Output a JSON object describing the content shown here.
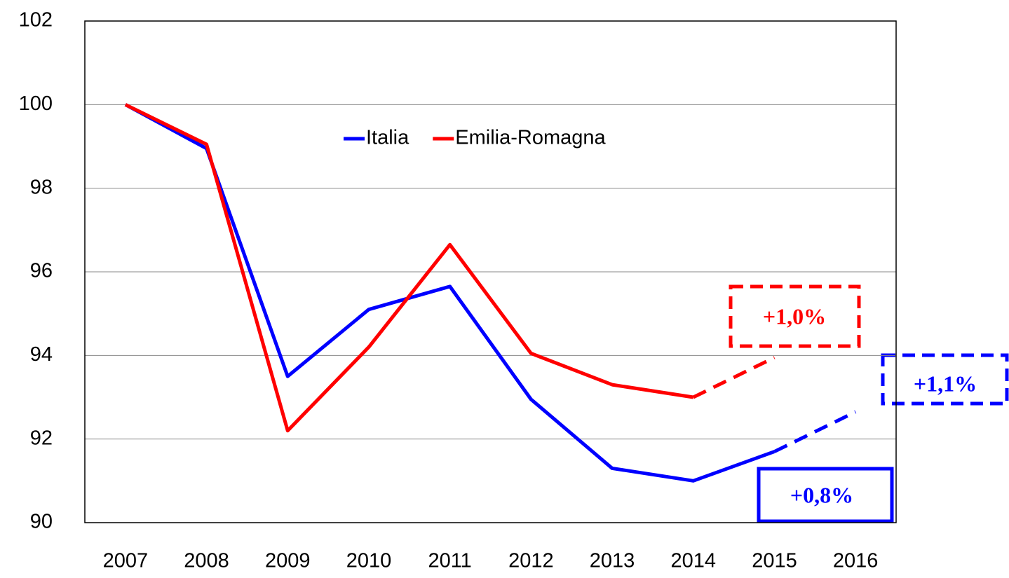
{
  "chart_data": {
    "type": "line",
    "categories": [
      "2007",
      "2008",
      "2009",
      "2010",
      "2011",
      "2012",
      "2013",
      "2014",
      "2015",
      "2016"
    ],
    "series": [
      {
        "name": "Italia",
        "color": "#0000ff",
        "dashed_from": 8,
        "values": [
          100,
          98.95,
          93.5,
          95.1,
          95.65,
          92.95,
          91.3,
          91.0,
          91.7,
          92.65
        ]
      },
      {
        "name": "Emilia-Romagna",
        "color": "#ff0000",
        "dashed_from": 7,
        "values": [
          100,
          99.05,
          92.2,
          94.2,
          96.65,
          94.05,
          93.3,
          93.0,
          93.95,
          null
        ]
      }
    ],
    "ylim": [
      90,
      102
    ],
    "yticks": [
      90,
      92,
      94,
      96,
      98,
      100,
      102
    ],
    "grid": true,
    "annotations": [
      "+1,0%",
      "+1,1%",
      "+0,8%"
    ]
  }
}
